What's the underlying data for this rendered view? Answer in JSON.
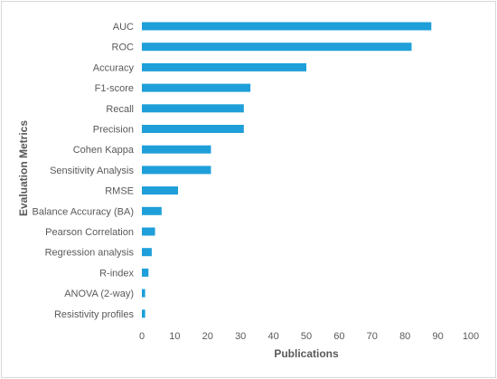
{
  "chart_data": {
    "type": "bar",
    "orientation": "horizontal",
    "categories": [
      "AUC",
      "ROC",
      "Accuracy",
      "F1-score",
      "Recall",
      "Precision",
      "Cohen Kappa",
      "Sensitivity Analysis",
      "RMSE",
      "Balance Accuracy (BA)",
      "Pearson Correlation",
      "Regression analysis",
      "R-index",
      "ANOVA (2-way)",
      "Resistivity profiles"
    ],
    "values": [
      88,
      82,
      50,
      33,
      31,
      31,
      21,
      21,
      11,
      6,
      4,
      3,
      2,
      1,
      1
    ],
    "xlabel": "Publications",
    "ylabel": "Evaluation Metrics",
    "xlim": [
      0,
      100
    ],
    "xticks": [
      "0",
      "10",
      "20",
      "30",
      "40",
      "50",
      "60",
      "70",
      "80",
      "90",
      "100"
    ],
    "grid": false,
    "legend": "none",
    "bar_color": "#1f9fd9"
  }
}
